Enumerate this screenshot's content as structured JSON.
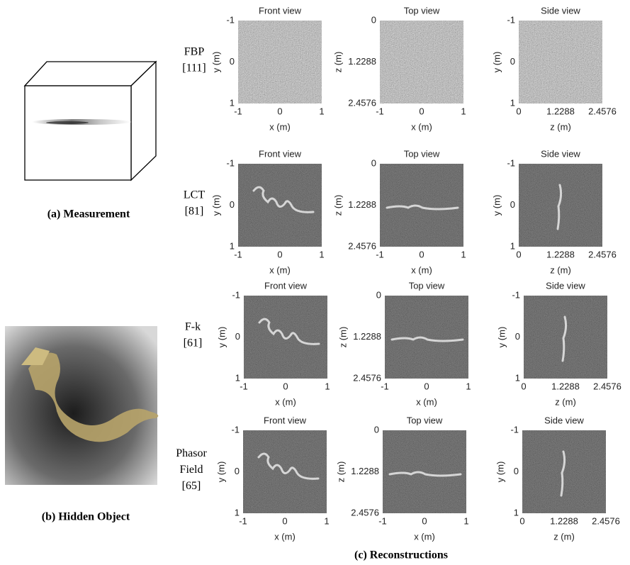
{
  "captions": {
    "measurement": "(a) Measurement",
    "hidden_object": "(b) Hidden Object",
    "reconstructions": "(c) Reconstructions"
  },
  "rows": [
    {
      "method": [
        "FBP",
        "[111]"
      ],
      "panels": [
        {
          "title": "Front view",
          "xlabel": "x (m)",
          "ylabel": "y (m)",
          "xticks": [
            "-1",
            "0",
            "1"
          ],
          "yticks": [
            "-1",
            "0",
            "1"
          ]
        },
        {
          "title": "Top view",
          "xlabel": "x (m)",
          "ylabel": "z (m)",
          "xticks": [
            "-1",
            "0",
            "1"
          ],
          "yticks": [
            "0",
            "1.2288",
            "2.4576"
          ]
        },
        {
          "title": "Side view",
          "xlabel": "z (m)",
          "ylabel": "y (m)",
          "xticks": [
            "0",
            "1.2288",
            "2.4576"
          ],
          "yticks": [
            "-1",
            "0",
            "1"
          ]
        }
      ]
    },
    {
      "method": [
        "LCT",
        "[81]"
      ],
      "panels": [
        {
          "title": "Front view",
          "xlabel": "x (m)",
          "ylabel": "y (m)",
          "xticks": [
            "-1",
            "0",
            "1"
          ],
          "yticks": [
            "-1",
            "0",
            "1"
          ]
        },
        {
          "title": "Top view",
          "xlabel": "x (m)",
          "ylabel": "z (m)",
          "xticks": [
            "-1",
            "0",
            "1"
          ],
          "yticks": [
            "0",
            "1.2288",
            "2.4576"
          ]
        },
        {
          "title": "Side view",
          "xlabel": "z (m)",
          "ylabel": "y (m)",
          "xticks": [
            "0",
            "1.2288",
            "2.4576"
          ],
          "yticks": [
            "-1",
            "0",
            "1"
          ]
        }
      ]
    },
    {
      "method": [
        "F-k",
        "[61]"
      ],
      "panels": [
        {
          "title": "Front view",
          "xlabel": "x (m)",
          "ylabel": "y (m)",
          "xticks": [
            "-1",
            "0",
            "1"
          ],
          "yticks": [
            "-1",
            "0",
            "1"
          ]
        },
        {
          "title": "Top view",
          "xlabel": "x (m)",
          "ylabel": "z (m)",
          "xticks": [
            "-1",
            "0",
            "1"
          ],
          "yticks": [
            "0",
            "1.2288",
            "2.4576"
          ]
        },
        {
          "title": "Side view",
          "xlabel": "z (m)",
          "ylabel": "y (m)",
          "xticks": [
            "0",
            "1.2288",
            "2.4576"
          ],
          "yticks": [
            "-1",
            "0",
            "1"
          ]
        }
      ]
    },
    {
      "method": [
        "Phasor",
        "Field",
        "[65]"
      ],
      "panels": [
        {
          "title": "Front view",
          "xlabel": "x (m)",
          "ylabel": "y (m)",
          "xticks": [
            "-1",
            "0",
            "1"
          ],
          "yticks": [
            "-1",
            "0",
            "1"
          ]
        },
        {
          "title": "Top view",
          "xlabel": "x (m)",
          "ylabel": "z (m)",
          "xticks": [
            "-1",
            "0",
            "1"
          ],
          "yticks": [
            "0",
            "1.2288",
            "2.4576"
          ]
        },
        {
          "title": "Side view",
          "xlabel": "z (m)",
          "ylabel": "y (m)",
          "xticks": [
            "0",
            "1.2288",
            "2.4576"
          ],
          "yticks": [
            "-1",
            "0",
            "1"
          ]
        }
      ]
    }
  ]
}
